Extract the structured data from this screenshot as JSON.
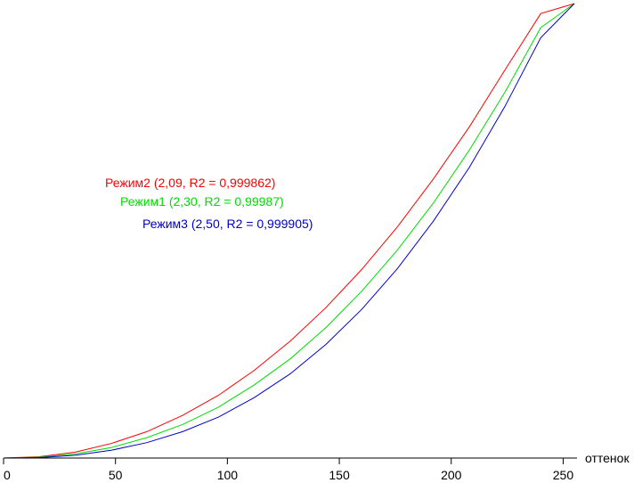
{
  "chart_data": {
    "type": "line",
    "title": "",
    "xlabel": "оттенок",
    "ylabel": "",
    "xlim": [
      0,
      255
    ],
    "ylim": [
      0,
      1
    ],
    "grid": false,
    "x_ticks": [
      0,
      50,
      100,
      150,
      200,
      250
    ],
    "x_tick_labels": [
      "0",
      "50",
      "100",
      "150",
      "200",
      "250"
    ],
    "series": [
      {
        "name": "Режим2",
        "label": "Режим2 (2,09, R2 = 0,999862)",
        "gamma": 2.09,
        "color": "#ff0000",
        "x": [
          0,
          16,
          32,
          48,
          64,
          80,
          96,
          112,
          128,
          144,
          160,
          176,
          192,
          208,
          224,
          240,
          255
        ],
        "y": [
          0,
          0.003,
          0.013,
          0.032,
          0.058,
          0.094,
          0.138,
          0.193,
          0.257,
          0.331,
          0.415,
          0.509,
          0.614,
          0.728,
          0.854,
          0.978,
          1.0
        ]
      },
      {
        "name": "Режим1",
        "label": "Режим1 (2,30, R2 = 0,99987)",
        "gamma": 2.3,
        "color": "#00dd00",
        "x": [
          0,
          16,
          32,
          48,
          64,
          80,
          96,
          112,
          128,
          144,
          160,
          176,
          192,
          208,
          224,
          240,
          255
        ],
        "y": [
          0,
          0.002,
          0.009,
          0.023,
          0.045,
          0.074,
          0.112,
          0.161,
          0.218,
          0.287,
          0.367,
          0.458,
          0.561,
          0.677,
          0.805,
          0.947,
          1.0
        ]
      },
      {
        "name": "Режим3",
        "label": "Режим3 (2,50, R2 = 0,999905)",
        "gamma": 2.5,
        "color": "#0000cc",
        "x": [
          0,
          16,
          32,
          48,
          64,
          80,
          96,
          112,
          128,
          144,
          160,
          176,
          192,
          208,
          224,
          240,
          255
        ],
        "y": [
          0,
          0.001,
          0.006,
          0.017,
          0.034,
          0.058,
          0.09,
          0.133,
          0.185,
          0.25,
          0.327,
          0.417,
          0.521,
          0.639,
          0.774,
          0.925,
          1.0
        ]
      }
    ]
  }
}
